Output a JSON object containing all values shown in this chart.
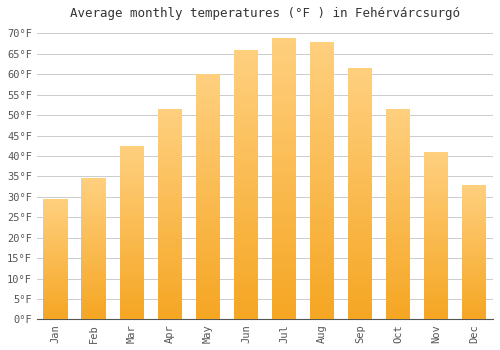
{
  "title": "Average monthly temperatures (°F ) in Fehérvárcsurgó",
  "months": [
    "Jan",
    "Feb",
    "Mar",
    "Apr",
    "May",
    "Jun",
    "Jul",
    "Aug",
    "Sep",
    "Oct",
    "Nov",
    "Dec"
  ],
  "values": [
    29.5,
    34.5,
    42.5,
    51.5,
    60.0,
    66.0,
    69.0,
    68.0,
    61.5,
    51.5,
    41.0,
    33.0
  ],
  "bar_color_bottom": "#F5A623",
  "bar_color_top": "#FFD080",
  "ylim": [
    0,
    72
  ],
  "yticks": [
    0,
    5,
    10,
    15,
    20,
    25,
    30,
    35,
    40,
    45,
    50,
    55,
    60,
    65,
    70
  ],
  "background_color": "#ffffff",
  "grid_color": "#cccccc",
  "title_fontsize": 9,
  "tick_fontsize": 7.5,
  "font_family": "monospace",
  "bar_width": 0.65
}
